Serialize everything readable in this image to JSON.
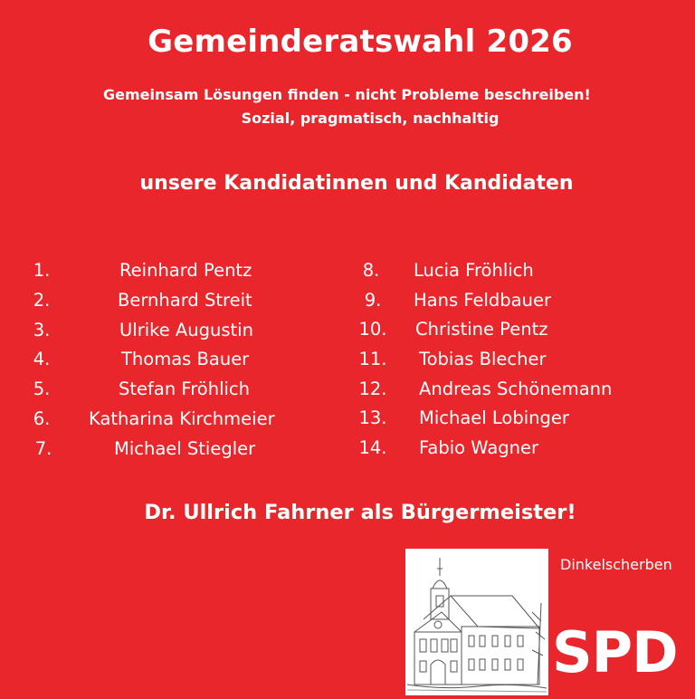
{
  "title": "Gemeinderatswahl 2026",
  "subtitle_line1": "Gemeinsam Lösungen finden - nicht Probleme beschreiben!",
  "subtitle_line2": "Sozial, pragmatisch, nachhaltig",
  "section_heading": "unsere Kandidatinnen und Kandidaten",
  "candidates_left": [
    {
      "num": "1.",
      "name": "Reinhard Pentz"
    },
    {
      "num": "2.",
      "name": "Bernhard Streit"
    },
    {
      "num": "3.",
      "name": "Ulrike Augustin"
    },
    {
      "num": "4.",
      "name": "Thomas Bauer"
    },
    {
      "num": "5.",
      "name": "Stefan Fröhlich"
    },
    {
      "num": "6.",
      "name": "Katharina Kirchmeier"
    },
    {
      "num": "7.",
      "name": "Michael Stiegler"
    }
  ],
  "candidates_right": [
    {
      "num": "8.",
      "name": "Lucia Fröhlich"
    },
    {
      "num": "9.",
      "name": "Hans Feldbauer"
    },
    {
      "num": "10.",
      "name": "Christine Pentz"
    },
    {
      "num": "11.",
      "name": "Tobias Blecher"
    },
    {
      "num": "12.",
      "name": "Andreas Schönemann"
    },
    {
      "num": "13.",
      "name": "Michael Lobinger"
    },
    {
      "num": "14.",
      "name": "Fabio Wagner"
    }
  ],
  "mayor_line": "Dr. Ullrich Fahrner als Bürgermeister!",
  "org_name": "Dinkelscherben",
  "logo_text": "SPD",
  "colors": {
    "background": "#e8262b",
    "text": "#ffffff"
  }
}
